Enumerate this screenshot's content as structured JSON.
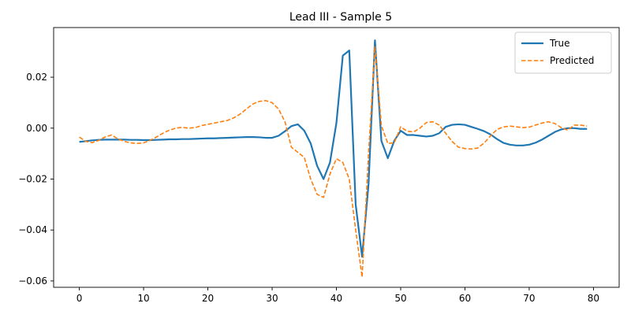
{
  "chart_data": {
    "type": "line",
    "title": "Lead III - Sample 5",
    "xlabel": "",
    "ylabel": "",
    "xlim": [
      -4,
      84
    ],
    "ylim": [
      -0.0625,
      0.0395
    ],
    "xticks": [
      0,
      10,
      20,
      30,
      40,
      50,
      60,
      70,
      80
    ],
    "yticks": [
      0.02,
      0.0,
      -0.02,
      -0.04,
      -0.06
    ],
    "ytick_labels": [
      "0.02",
      "0.00",
      "−0.02",
      "−0.04",
      "−0.06"
    ],
    "grid": false,
    "legend_position": "top-right",
    "series": [
      {
        "name": "True",
        "color": "#1f77b4",
        "style": "solid",
        "x": [
          0,
          1,
          2,
          3,
          4,
          5,
          6,
          7,
          8,
          9,
          10,
          11,
          12,
          13,
          14,
          15,
          16,
          17,
          18,
          19,
          20,
          21,
          22,
          23,
          24,
          25,
          26,
          27,
          28,
          29,
          30,
          31,
          32,
          33,
          34,
          35,
          36,
          37,
          38,
          39,
          40,
          41,
          42,
          43,
          44,
          45,
          46,
          47,
          48,
          49,
          50,
          51,
          52,
          53,
          54,
          55,
          56,
          57,
          58,
          59,
          60,
          61,
          62,
          63,
          64,
          65,
          66,
          67,
          68,
          69,
          70,
          71,
          72,
          73,
          74,
          75,
          76,
          77,
          78,
          79
        ],
        "y": [
          -0.0054,
          -0.0051,
          -0.0048,
          -0.0046,
          -0.0045,
          -0.0045,
          -0.0045,
          -0.0045,
          -0.0046,
          -0.0046,
          -0.0047,
          -0.0047,
          -0.0046,
          -0.0045,
          -0.0044,
          -0.0044,
          -0.0043,
          -0.0043,
          -0.0042,
          -0.0041,
          -0.004,
          -0.004,
          -0.0039,
          -0.0038,
          -0.0037,
          -0.0036,
          -0.0035,
          -0.0035,
          -0.0036,
          -0.0038,
          -0.0038,
          -0.003,
          -0.0012,
          0.0008,
          0.0015,
          -0.001,
          -0.006,
          -0.0148,
          -0.02,
          -0.0135,
          0.002,
          0.0285,
          0.0305,
          -0.03,
          -0.0505,
          -0.022,
          0.0345,
          -0.005,
          -0.0118,
          -0.005,
          -0.001,
          -0.0027,
          -0.0027,
          -0.003,
          -0.0033,
          -0.003,
          -0.002,
          0.0005,
          0.0013,
          0.0015,
          0.0013,
          0.0005,
          -0.0003,
          -0.0012,
          -0.0025,
          -0.0043,
          -0.0058,
          -0.0065,
          -0.0068,
          -0.0068,
          -0.0065,
          -0.0057,
          -0.0045,
          -0.003,
          -0.0015,
          -0.0005,
          0.0,
          0.0,
          -0.0003,
          -0.0003
        ]
      },
      {
        "name": "Predicted",
        "color": "#ff7f0e",
        "style": "dashed",
        "x": [
          0,
          1,
          2,
          3,
          4,
          5,
          6,
          7,
          8,
          9,
          10,
          11,
          12,
          13,
          14,
          15,
          16,
          17,
          18,
          19,
          20,
          21,
          22,
          23,
          24,
          25,
          26,
          27,
          28,
          29,
          30,
          31,
          32,
          33,
          34,
          35,
          36,
          37,
          38,
          39,
          40,
          41,
          42,
          43,
          44,
          45,
          46,
          47,
          48,
          49,
          50,
          51,
          52,
          53,
          54,
          55,
          56,
          57,
          58,
          59,
          60,
          61,
          62,
          63,
          64,
          65,
          66,
          67,
          68,
          69,
          70,
          71,
          72,
          73,
          74,
          75,
          76,
          77,
          78,
          79
        ],
        "y": [
          -0.0035,
          -0.0052,
          -0.0057,
          -0.0048,
          -0.0035,
          -0.0027,
          -0.0042,
          -0.0052,
          -0.0058,
          -0.006,
          -0.0058,
          -0.0048,
          -0.0035,
          -0.002,
          -0.0008,
          0.0,
          0.0003,
          0.0,
          0.0002,
          0.001,
          0.0015,
          0.002,
          0.0025,
          0.003,
          0.004,
          0.0055,
          0.0075,
          0.0095,
          0.0105,
          0.0108,
          0.01,
          0.0075,
          0.0025,
          -0.0075,
          -0.0095,
          -0.0115,
          -0.02,
          -0.026,
          -0.0272,
          -0.018,
          -0.012,
          -0.0135,
          -0.02,
          -0.04,
          -0.0585,
          -0.01,
          0.032,
          0.001,
          -0.006,
          -0.0058,
          0.0005,
          -0.0012,
          -0.0015,
          0.0,
          0.0022,
          0.0025,
          0.0012,
          -0.002,
          -0.0052,
          -0.0075,
          -0.008,
          -0.0082,
          -0.0078,
          -0.0058,
          -0.003,
          -0.0005,
          0.0005,
          0.0008,
          0.0005,
          0.0002,
          0.0004,
          0.0012,
          0.002,
          0.0025,
          0.0018,
          0.0002,
          -0.0008,
          0.0012,
          0.0012,
          0.0008
        ]
      }
    ]
  }
}
